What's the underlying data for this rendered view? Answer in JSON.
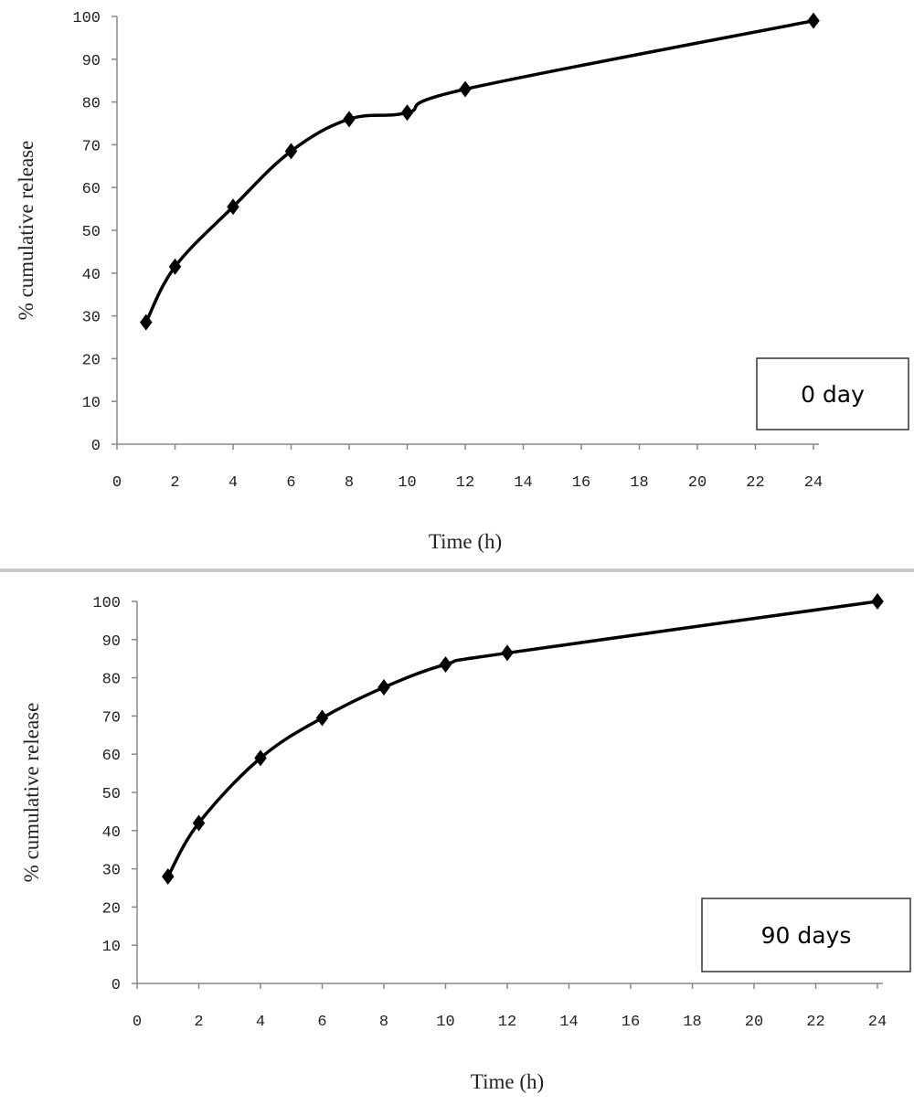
{
  "chart_data": [
    {
      "type": "line",
      "xlabel": "Time (h)",
      "ylabel": "% cumulative release",
      "xlim": [
        0,
        24
      ],
      "ylim": [
        0,
        100
      ],
      "xticks": [
        0,
        2,
        4,
        6,
        8,
        10,
        12,
        14,
        16,
        18,
        20,
        22,
        24
      ],
      "yticks": [
        0,
        10,
        20,
        30,
        40,
        50,
        60,
        70,
        80,
        90,
        100
      ],
      "grid": false,
      "annotation": "0 day",
      "series": [
        {
          "x": [
            1,
            2,
            4,
            6,
            8,
            10,
            12,
            24
          ],
          "y": [
            28.5,
            41.5,
            55.5,
            68.5,
            76,
            77.5,
            83,
            99
          ],
          "color": "#000000",
          "marker": "diamond"
        }
      ]
    },
    {
      "type": "line",
      "xlabel": "Time (h)",
      "ylabel": "% cumulative release",
      "xlim": [
        0,
        24
      ],
      "ylim": [
        0,
        100
      ],
      "xticks": [
        0,
        2,
        4,
        6,
        8,
        10,
        12,
        14,
        16,
        18,
        20,
        22,
        24
      ],
      "yticks": [
        0,
        10,
        20,
        30,
        40,
        50,
        60,
        70,
        80,
        90,
        100
      ],
      "grid": false,
      "annotation": "90 days",
      "series": [
        {
          "x": [
            1,
            2,
            4,
            6,
            8,
            10,
            12,
            24
          ],
          "y": [
            28,
            42,
            59,
            69.5,
            77.5,
            83.5,
            86.5,
            100
          ],
          "color": "#000000",
          "marker": "diamond"
        }
      ]
    }
  ]
}
